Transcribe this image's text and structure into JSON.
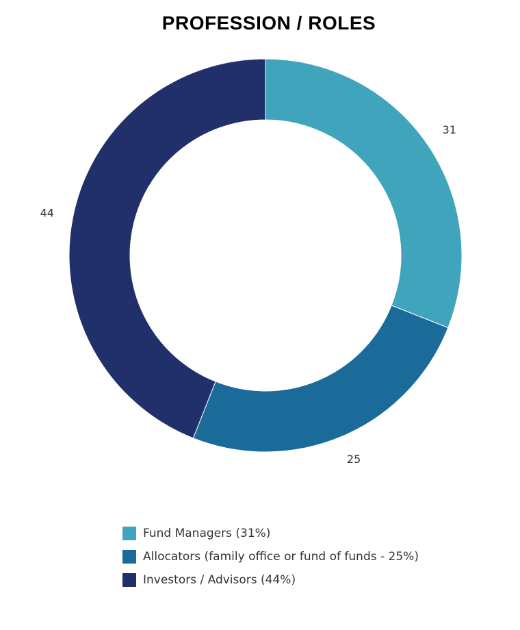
{
  "chart_data": {
    "type": "pie",
    "title": "PROFESSION / ROLES",
    "donut": true,
    "legend_position": "bottom",
    "slices": [
      {
        "name": "Fund Managers (31%)",
        "value": 31,
        "label": "31",
        "color": "#41a4bd"
      },
      {
        "name": "Allocators (family office or fund of funds - 25%)",
        "value": 25,
        "label": "25",
        "color": "#1a6b9a"
      },
      {
        "name": "Investors / Advisors (44%)",
        "value": 44,
        "label": "44",
        "color": "#21306a"
      }
    ]
  }
}
